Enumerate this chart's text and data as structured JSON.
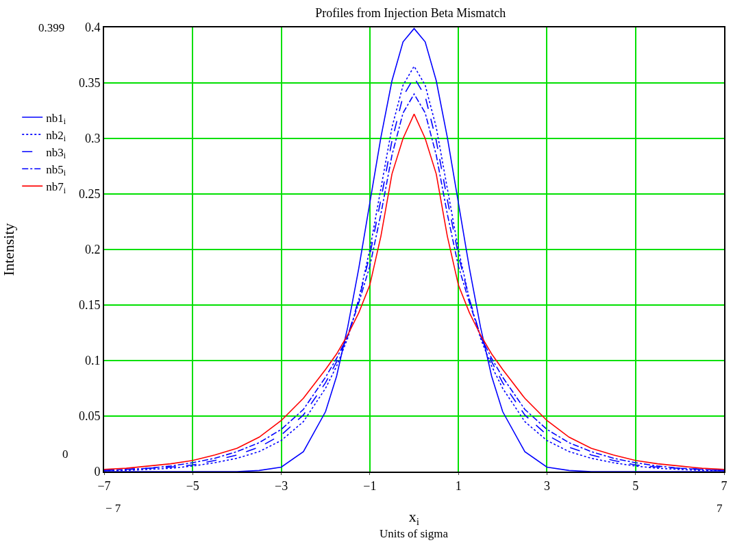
{
  "chart_data": {
    "type": "line",
    "title": "Profiles from Injection Beta Mismatch",
    "xlabel": "x$_{i}$",
    "ylabel": "Intensity",
    "x": [
      -7,
      -6.5,
      -6,
      -5.5,
      -5,
      -4.5,
      -4,
      -3.5,
      -3,
      -2.5,
      -2,
      -1.75,
      -1.5,
      -1.25,
      -1,
      -0.75,
      -0.5,
      -0.25,
      0,
      0.25,
      0.5,
      0.75,
      1,
      1.25,
      1.5,
      1.75,
      2,
      2.5,
      3,
      3.5,
      4,
      4.5,
      5,
      5.5,
      6,
      6.5,
      7
    ],
    "series": [
      {
        "name": "nb1$_{i}$",
        "color": "#0000ff",
        "line_style": "solid",
        "values": [
          0,
          0,
          0,
          0,
          0,
          0,
          0,
          0.001,
          0.004,
          0.018,
          0.054,
          0.086,
          0.13,
          0.183,
          0.242,
          0.301,
          0.352,
          0.387,
          0.399,
          0.387,
          0.352,
          0.301,
          0.242,
          0.183,
          0.13,
          0.086,
          0.054,
          0.018,
          0.004,
          0.001,
          0,
          0,
          0,
          0,
          0,
          0,
          0
        ]
      },
      {
        "name": "nb2$_{i}$",
        "color": "#0000ff",
        "line_style": "dotted",
        "values": [
          0.001,
          0.001,
          0.002,
          0.003,
          0.005,
          0.008,
          0.012,
          0.018,
          0.028,
          0.045,
          0.075,
          0.095,
          0.12,
          0.155,
          0.2,
          0.255,
          0.31,
          0.348,
          0.365,
          0.348,
          0.31,
          0.255,
          0.2,
          0.155,
          0.12,
          0.095,
          0.075,
          0.045,
          0.028,
          0.018,
          0.012,
          0.008,
          0.005,
          0.003,
          0.002,
          0.001,
          0.001
        ]
      },
      {
        "name": "nb3$_{i}$",
        "color": "#0000ff",
        "line_style": "dashed",
        "values": [
          0.001,
          0.002,
          0.003,
          0.004,
          0.006,
          0.01,
          0.015,
          0.022,
          0.033,
          0.051,
          0.08,
          0.099,
          0.122,
          0.155,
          0.195,
          0.245,
          0.298,
          0.338,
          0.355,
          0.338,
          0.298,
          0.245,
          0.195,
          0.155,
          0.122,
          0.099,
          0.08,
          0.051,
          0.033,
          0.022,
          0.015,
          0.01,
          0.006,
          0.004,
          0.003,
          0.002,
          0.001
        ]
      },
      {
        "name": "nb5$_{i}$",
        "color": "#0000ff",
        "line_style": "dashdot",
        "values": [
          0.001,
          0.002,
          0.003,
          0.005,
          0.008,
          0.012,
          0.018,
          0.026,
          0.038,
          0.056,
          0.085,
          0.102,
          0.122,
          0.152,
          0.185,
          0.232,
          0.285,
          0.323,
          0.34,
          0.323,
          0.285,
          0.232,
          0.185,
          0.152,
          0.122,
          0.102,
          0.085,
          0.056,
          0.038,
          0.026,
          0.018,
          0.012,
          0.008,
          0.005,
          0.003,
          0.002,
          0.001
        ]
      },
      {
        "name": "nb7$_{i}$",
        "color": "#ff0000",
        "line_style": "solid",
        "values": [
          0.002,
          0.003,
          0.005,
          0.007,
          0.01,
          0.015,
          0.021,
          0.031,
          0.046,
          0.066,
          0.092,
          0.106,
          0.123,
          0.143,
          0.168,
          0.212,
          0.268,
          0.3,
          0.322,
          0.3,
          0.268,
          0.212,
          0.168,
          0.143,
          0.123,
          0.106,
          0.092,
          0.066,
          0.046,
          0.031,
          0.021,
          0.015,
          0.01,
          0.007,
          0.005,
          0.003,
          0.002
        ]
      }
    ],
    "xlim": [
      -7,
      7
    ],
    "xticks": [
      {
        "value": -7,
        "label": "−7"
      },
      {
        "value": -5,
        "label": "−5"
      },
      {
        "value": -3,
        "label": "−3"
      },
      {
        "value": -1,
        "label": "−1"
      },
      1,
      3,
      5,
      7
    ],
    "ylim": [
      0,
      0.4
    ],
    "yticks": [
      0,
      0.05,
      0.1,
      0.15,
      0.2,
      0.25,
      0.3,
      0.35,
      0.4
    ],
    "grid": true,
    "legend": "left",
    "marker": "none",
    "annotations": [
      "0.399",
      "0",
      "− 7",
      "7",
      "Units of sigma"
    ]
  }
}
